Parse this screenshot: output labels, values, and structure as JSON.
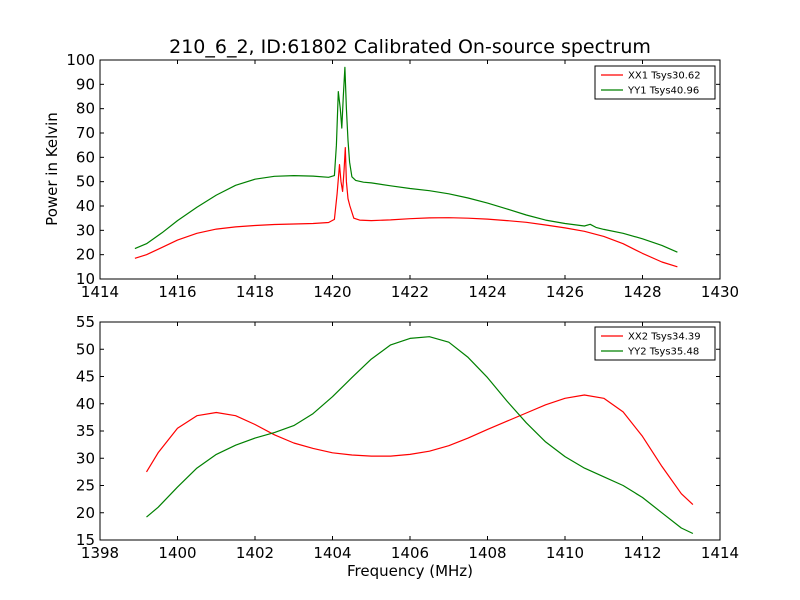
{
  "figure": {
    "title": "210_6_2, ID:61802 Calibrated On-source spectrum",
    "ylabel": "Power in Kelvin",
    "xlabel": "Frequency (MHz)"
  },
  "chart_data": [
    {
      "type": "line",
      "title": "210_6_2, ID:61802 Calibrated On-source spectrum",
      "xlabel": "",
      "ylabel": "Power in Kelvin",
      "xlim": [
        1414,
        1430
      ],
      "ylim": [
        10,
        100
      ],
      "xticks": [
        1414,
        1416,
        1418,
        1420,
        1422,
        1424,
        1426,
        1428,
        1430
      ],
      "yticks": [
        10,
        20,
        30,
        40,
        50,
        60,
        70,
        80,
        90,
        100
      ],
      "legend": "top-right",
      "grid": false,
      "series": [
        {
          "name": "XX1 Tsys30.62",
          "color": "#ff0000",
          "points": [
            [
              1414.9,
              18.5
            ],
            [
              1415.2,
              20.0
            ],
            [
              1415.6,
              23.0
            ],
            [
              1416.0,
              26.0
            ],
            [
              1416.5,
              28.8
            ],
            [
              1417.0,
              30.5
            ],
            [
              1417.5,
              31.4
            ],
            [
              1418.0,
              32.0
            ],
            [
              1418.5,
              32.4
            ],
            [
              1419.0,
              32.6
            ],
            [
              1419.5,
              32.8
            ],
            [
              1419.9,
              33.2
            ],
            [
              1420.05,
              34.5
            ],
            [
              1420.12,
              45.0
            ],
            [
              1420.18,
              57.0
            ],
            [
              1420.22,
              50.0
            ],
            [
              1420.26,
              46.0
            ],
            [
              1420.3,
              55.0
            ],
            [
              1420.33,
              64.0
            ],
            [
              1420.36,
              50.0
            ],
            [
              1420.4,
              43.0
            ],
            [
              1420.45,
              40.0
            ],
            [
              1420.55,
              35.0
            ],
            [
              1420.7,
              34.2
            ],
            [
              1421.0,
              34.0
            ],
            [
              1421.5,
              34.3
            ],
            [
              1422.0,
              34.8
            ],
            [
              1422.5,
              35.1
            ],
            [
              1423.0,
              35.2
            ],
            [
              1423.5,
              35.0
            ],
            [
              1424.0,
              34.6
            ],
            [
              1424.5,
              34.0
            ],
            [
              1425.0,
              33.3
            ],
            [
              1425.5,
              32.2
            ],
            [
              1426.0,
              31.0
            ],
            [
              1426.5,
              29.6
            ],
            [
              1427.0,
              27.5
            ],
            [
              1427.5,
              24.5
            ],
            [
              1428.0,
              20.5
            ],
            [
              1428.5,
              17.0
            ],
            [
              1428.9,
              15.0
            ]
          ]
        },
        {
          "name": "YY1 Tsys40.96",
          "color": "#008000",
          "points": [
            [
              1414.9,
              22.5
            ],
            [
              1415.2,
              24.5
            ],
            [
              1415.6,
              29.0
            ],
            [
              1416.0,
              34.0
            ],
            [
              1416.5,
              39.5
            ],
            [
              1417.0,
              44.5
            ],
            [
              1417.5,
              48.5
            ],
            [
              1418.0,
              51.0
            ],
            [
              1418.5,
              52.2
            ],
            [
              1419.0,
              52.5
            ],
            [
              1419.5,
              52.3
            ],
            [
              1419.9,
              51.8
            ],
            [
              1420.05,
              52.5
            ],
            [
              1420.1,
              65.0
            ],
            [
              1420.15,
              87.0
            ],
            [
              1420.2,
              80.0
            ],
            [
              1420.24,
              72.0
            ],
            [
              1420.28,
              85.0
            ],
            [
              1420.32,
              97.0
            ],
            [
              1420.36,
              80.0
            ],
            [
              1420.4,
              67.0
            ],
            [
              1420.44,
              58.0
            ],
            [
              1420.5,
              52.0
            ],
            [
              1420.6,
              50.5
            ],
            [
              1420.8,
              49.8
            ],
            [
              1421.0,
              49.5
            ],
            [
              1421.5,
              48.3
            ],
            [
              1422.0,
              47.2
            ],
            [
              1422.5,
              46.3
            ],
            [
              1423.0,
              45.0
            ],
            [
              1423.5,
              43.3
            ],
            [
              1424.0,
              41.2
            ],
            [
              1424.5,
              38.8
            ],
            [
              1425.0,
              36.3
            ],
            [
              1425.5,
              34.2
            ],
            [
              1426.0,
              32.8
            ],
            [
              1426.5,
              31.8
            ],
            [
              1426.65,
              32.5
            ],
            [
              1426.8,
              31.2
            ],
            [
              1427.0,
              30.4
            ],
            [
              1427.5,
              28.8
            ],
            [
              1428.0,
              26.5
            ],
            [
              1428.5,
              23.8
            ],
            [
              1428.9,
              21.0
            ]
          ]
        }
      ]
    },
    {
      "type": "line",
      "title": "",
      "xlabel": "Frequency (MHz)",
      "ylabel": "",
      "xlim": [
        1398,
        1414
      ],
      "ylim": [
        15,
        55
      ],
      "xticks": [
        1398,
        1400,
        1402,
        1404,
        1406,
        1408,
        1410,
        1412,
        1414
      ],
      "yticks": [
        15,
        20,
        25,
        30,
        35,
        40,
        45,
        50,
        55
      ],
      "legend": "top-right",
      "grid": false,
      "series": [
        {
          "name": "XX2 Tsys34.39",
          "color": "#ff0000",
          "points": [
            [
              1399.2,
              27.5
            ],
            [
              1399.5,
              31.0
            ],
            [
              1400.0,
              35.5
            ],
            [
              1400.5,
              37.8
            ],
            [
              1401.0,
              38.4
            ],
            [
              1401.5,
              37.8
            ],
            [
              1402.0,
              36.2
            ],
            [
              1402.5,
              34.3
            ],
            [
              1403.0,
              32.8
            ],
            [
              1403.5,
              31.8
            ],
            [
              1404.0,
              31.0
            ],
            [
              1404.5,
              30.6
            ],
            [
              1405.0,
              30.4
            ],
            [
              1405.5,
              30.4
            ],
            [
              1406.0,
              30.7
            ],
            [
              1406.5,
              31.3
            ],
            [
              1407.0,
              32.3
            ],
            [
              1407.5,
              33.7
            ],
            [
              1408.0,
              35.3
            ],
            [
              1408.5,
              36.8
            ],
            [
              1409.0,
              38.3
            ],
            [
              1409.5,
              39.8
            ],
            [
              1410.0,
              41.0
            ],
            [
              1410.5,
              41.6
            ],
            [
              1411.0,
              41.0
            ],
            [
              1411.5,
              38.5
            ],
            [
              1412.0,
              34.0
            ],
            [
              1412.5,
              28.5
            ],
            [
              1413.0,
              23.5
            ],
            [
              1413.3,
              21.5
            ]
          ]
        },
        {
          "name": "YY2 Tsys35.48",
          "color": "#008000",
          "points": [
            [
              1399.2,
              19.2
            ],
            [
              1399.5,
              21.0
            ],
            [
              1400.0,
              24.7
            ],
            [
              1400.5,
              28.2
            ],
            [
              1401.0,
              30.7
            ],
            [
              1401.5,
              32.4
            ],
            [
              1402.0,
              33.7
            ],
            [
              1402.5,
              34.7
            ],
            [
              1403.0,
              36.0
            ],
            [
              1403.5,
              38.2
            ],
            [
              1404.0,
              41.3
            ],
            [
              1404.5,
              44.8
            ],
            [
              1405.0,
              48.2
            ],
            [
              1405.5,
              50.8
            ],
            [
              1406.0,
              52.0
            ],
            [
              1406.5,
              52.3
            ],
            [
              1407.0,
              51.3
            ],
            [
              1407.5,
              48.5
            ],
            [
              1408.0,
              44.8
            ],
            [
              1408.5,
              40.5
            ],
            [
              1409.0,
              36.5
            ],
            [
              1409.5,
              33.0
            ],
            [
              1410.0,
              30.3
            ],
            [
              1410.5,
              28.2
            ],
            [
              1411.0,
              26.6
            ],
            [
              1411.5,
              25.0
            ],
            [
              1412.0,
              22.8
            ],
            [
              1412.5,
              20.0
            ],
            [
              1413.0,
              17.2
            ],
            [
              1413.3,
              16.2
            ]
          ]
        }
      ]
    }
  ]
}
